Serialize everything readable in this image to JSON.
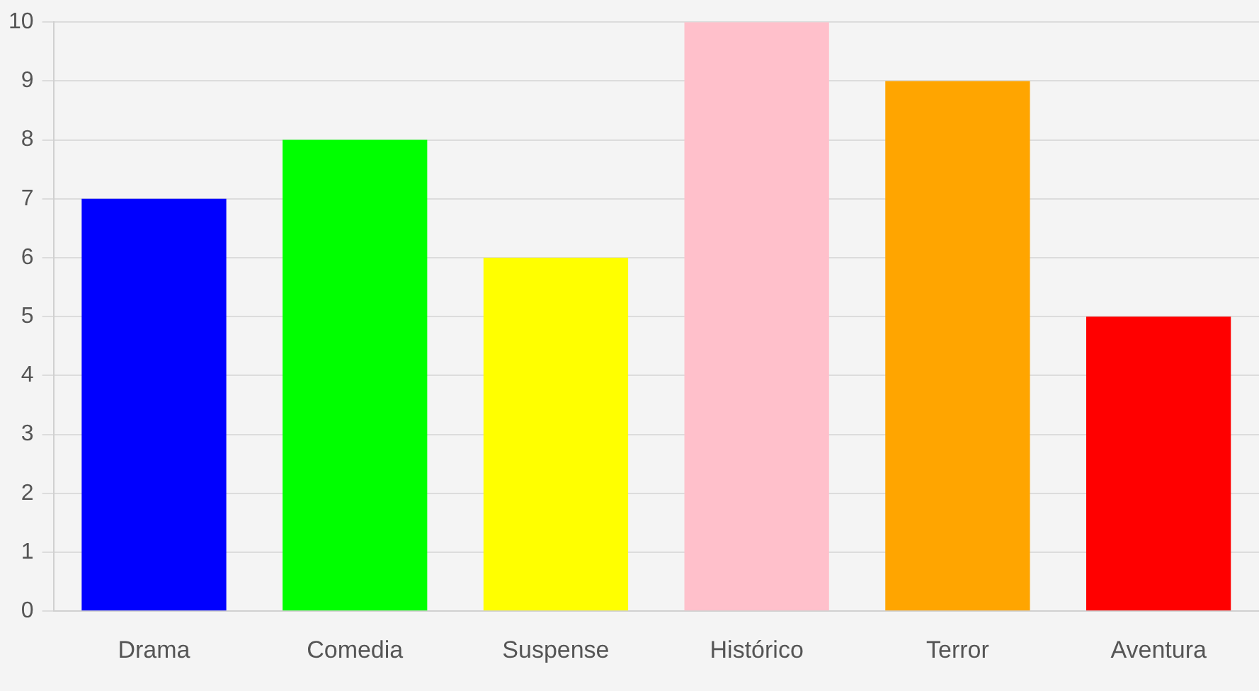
{
  "chart_data": {
    "type": "bar",
    "categories": [
      "Drama",
      "Comedia",
      "Suspense",
      "Histórico",
      "Terror",
      "Aventura"
    ],
    "values": [
      7,
      8,
      6,
      10,
      9,
      5
    ],
    "colors": [
      "#0000ff",
      "#00ff00",
      "#ffff00",
      "#ffc0cb",
      "#ffa500",
      "#ff0000"
    ],
    "ylim": [
      0,
      10
    ],
    "yticks": [
      0,
      1,
      2,
      3,
      4,
      5,
      6,
      7,
      8,
      9,
      10
    ],
    "grid": "y",
    "legend": false
  }
}
